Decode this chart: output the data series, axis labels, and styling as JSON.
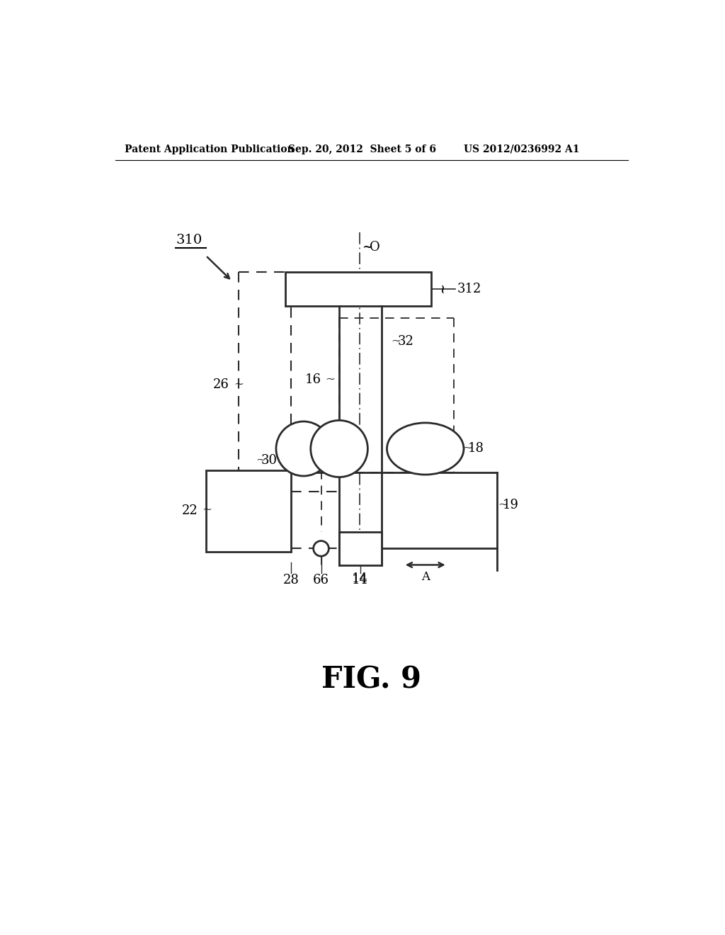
{
  "bg_color": "#ffffff",
  "header_left": "Patent Application Publication",
  "header_mid": "Sep. 20, 2012  Sheet 5 of 6",
  "header_right": "US 2012/0236992 A1",
  "figure_label": "FIG. 9",
  "label_310": "310",
  "label_312": "312",
  "label_26": "26",
  "label_16": "16",
  "label_32": "32",
  "label_18": "18",
  "label_30": "30",
  "label_22": "22",
  "label_19": "19",
  "label_28": "28",
  "label_66": "66",
  "label_14": "14",
  "label_O": "O",
  "label_A": "A"
}
